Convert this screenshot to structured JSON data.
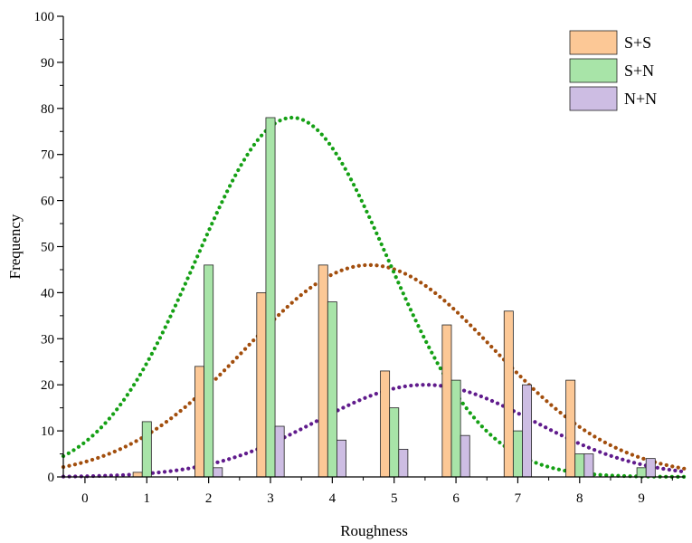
{
  "chart_data": {
    "type": "bar",
    "xlabel": "Roughness",
    "ylabel": "Frequency",
    "xlim": [
      -0.35,
      9.7
    ],
    "ylim": [
      0,
      100
    ],
    "x_ticks": [
      "0",
      "1",
      "2",
      "3",
      "4",
      "5",
      "6",
      "7",
      "8",
      "9"
    ],
    "y_ticks": [
      "0",
      "10",
      "20",
      "30",
      "40",
      "50",
      "60",
      "70",
      "80",
      "90",
      "100"
    ],
    "legend_position": "top-right",
    "grid": false,
    "series": [
      {
        "name": "S+S",
        "color": "#fcc896",
        "x": [
          1,
          2,
          3,
          4,
          5,
          6,
          7,
          8,
          9
        ],
        "values": [
          1,
          24,
          40,
          46,
          23,
          33,
          36,
          21,
          0
        ],
        "fit": {
          "type": "normal",
          "peak": 46,
          "mean": 4.6,
          "sd": 2.0,
          "color": "#a24e0d"
        }
      },
      {
        "name": "S+N",
        "color": "#a8e4a8",
        "x": [
          1,
          2,
          3,
          4,
          5,
          6,
          7,
          8,
          9
        ],
        "values": [
          12,
          46,
          78,
          38,
          15,
          21,
          10,
          5,
          2
        ],
        "fit": {
          "type": "normal",
          "peak": 78,
          "mean": 3.35,
          "sd": 1.55,
          "color": "#15a015"
        }
      },
      {
        "name": "N+N",
        "color": "#cdbde3",
        "x": [
          1,
          2,
          3,
          4,
          5,
          6,
          7,
          8,
          9
        ],
        "values": [
          0,
          2,
          11,
          8,
          6,
          9,
          20,
          5,
          4
        ],
        "fit": {
          "type": "normal",
          "peak": 20,
          "mean": 5.5,
          "sd": 1.75,
          "color": "#601b8c"
        }
      }
    ]
  }
}
